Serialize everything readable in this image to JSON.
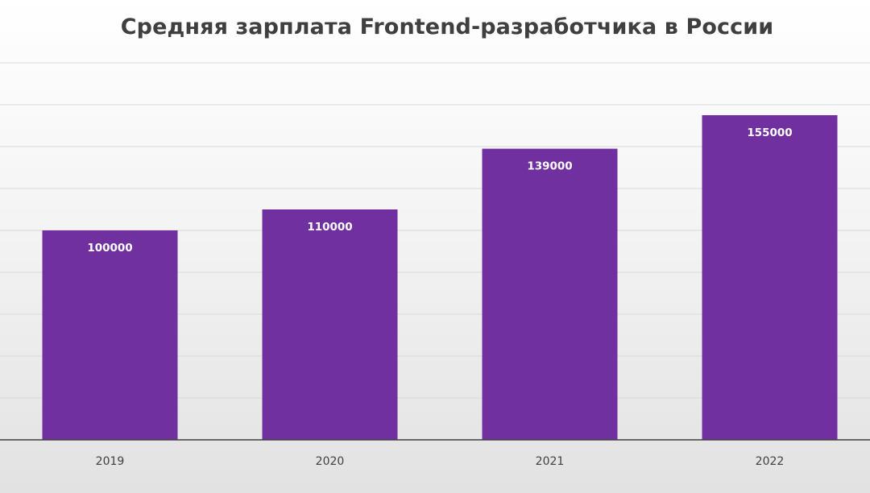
{
  "chart_data": {
    "type": "bar",
    "title": "Средняя зарплата Frontend-разработчика в России",
    "categories": [
      "2019",
      "2020",
      "2021",
      "2022"
    ],
    "values": [
      100000,
      110000,
      139000,
      155000
    ],
    "xlabel": "",
    "ylabel": "",
    "ylim": [
      0,
      180000
    ],
    "grid": true,
    "data_labels": true,
    "colors": {
      "bar": "#7030a0",
      "grid": "#d9d9d9",
      "axis": "#404040",
      "label": "#ffffff"
    }
  }
}
